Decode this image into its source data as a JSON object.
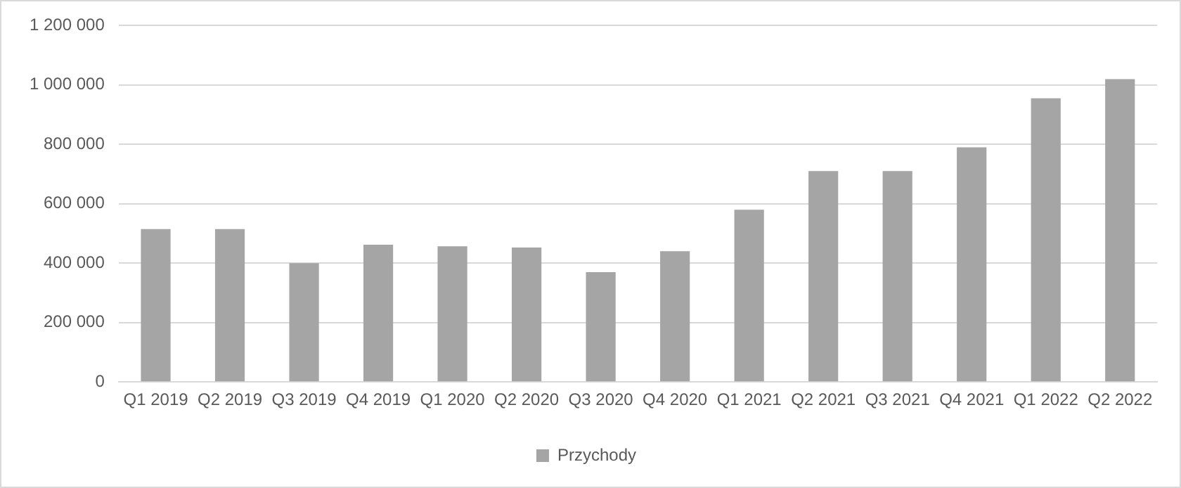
{
  "chart_data": {
    "type": "bar",
    "categories": [
      "Q1 2019",
      "Q2 2019",
      "Q3 2019",
      "Q4 2019",
      "Q1 2020",
      "Q2 2020",
      "Q3 2020",
      "Q4 2020",
      "Q1 2021",
      "Q2 2021",
      "Q3 2021",
      "Q4 2021",
      "Q1 2022",
      "Q2 2022"
    ],
    "series": [
      {
        "name": "Przychody",
        "color": "#a5a5a5",
        "values": [
          515000,
          515000,
          400000,
          462000,
          457000,
          453000,
          370000,
          440000,
          580000,
          710000,
          710000,
          790000,
          955000,
          1020000
        ]
      }
    ],
    "ylim": [
      0,
      1200000
    ],
    "yticks": [
      {
        "value": 0,
        "label": "0"
      },
      {
        "value": 200000,
        "label": "200 000"
      },
      {
        "value": 400000,
        "label": "400 000"
      },
      {
        "value": 600000,
        "label": "600 000"
      },
      {
        "value": 800000,
        "label": "800 000"
      },
      {
        "value": 1000000,
        "label": "1 000 000"
      },
      {
        "value": 1200000,
        "label": "1 200 000"
      }
    ],
    "grid": "y",
    "legend": "bottom"
  }
}
